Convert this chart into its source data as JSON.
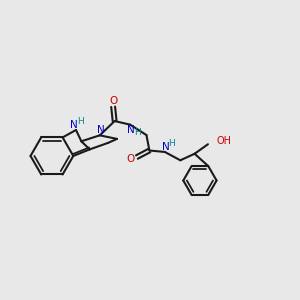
{
  "bg_color": "#e8e8e8",
  "bond_color": "#1a1a1a",
  "N_color": "#0000cc",
  "O_color": "#cc0000",
  "H_color": "#008888",
  "lw": 1.5,
  "xlim": [
    0,
    10
  ],
  "ylim": [
    1,
    8
  ]
}
